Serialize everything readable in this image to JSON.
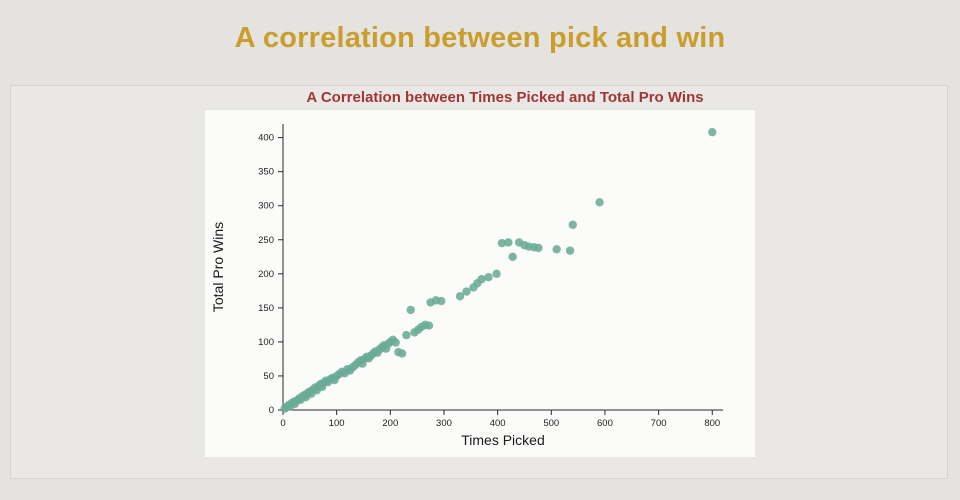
{
  "page": {
    "title": "A correlation between pick and win"
  },
  "chart": {
    "title": "A Correlation between Times Picked and Total Pro Wins",
    "xlabel": "Times Picked",
    "ylabel": "Total Pro Wins",
    "title_color": "#a13636",
    "point_color": "#6aab97",
    "axis_color": "#2a2a2a",
    "plot_bg": "#fbfbfa"
  },
  "colors": {
    "page_bg": "#e5e3e0",
    "panel_bg": "#eae8e5",
    "main_title": "#c99e2d"
  },
  "chart_data": {
    "type": "scatter",
    "title": "A Correlation between Times Picked and Total Pro Wins",
    "xlabel": "Times Picked",
    "ylabel": "Total Pro Wins",
    "xlim": [
      0,
      820
    ],
    "ylim": [
      0,
      420
    ],
    "x_ticks": [
      0,
      100,
      200,
      300,
      400,
      500,
      600,
      700,
      800
    ],
    "y_ticks": [
      0,
      50,
      100,
      150,
      200,
      250,
      300,
      350,
      400
    ],
    "points": [
      [
        3,
        2
      ],
      [
        6,
        4
      ],
      [
        10,
        7
      ],
      [
        13,
        5
      ],
      [
        16,
        10
      ],
      [
        20,
        12
      ],
      [
        22,
        9
      ],
      [
        26,
        14
      ],
      [
        30,
        17
      ],
      [
        33,
        15
      ],
      [
        36,
        20
      ],
      [
        40,
        22
      ],
      [
        43,
        19
      ],
      [
        46,
        25
      ],
      [
        50,
        27
      ],
      [
        53,
        24
      ],
      [
        56,
        30
      ],
      [
        60,
        33
      ],
      [
        63,
        29
      ],
      [
        66,
        35
      ],
      [
        70,
        38
      ],
      [
        73,
        34
      ],
      [
        76,
        40
      ],
      [
        80,
        43
      ],
      [
        84,
        41
      ],
      [
        88,
        45
      ],
      [
        92,
        47
      ],
      [
        96,
        44
      ],
      [
        100,
        50
      ],
      [
        105,
        53
      ],
      [
        110,
        56
      ],
      [
        115,
        54
      ],
      [
        120,
        60
      ],
      [
        125,
        58
      ],
      [
        130,
        63
      ],
      [
        135,
        66
      ],
      [
        140,
        70
      ],
      [
        145,
        73
      ],
      [
        148,
        68
      ],
      [
        152,
        75
      ],
      [
        156,
        78
      ],
      [
        160,
        76
      ],
      [
        164,
        80
      ],
      [
        168,
        83
      ],
      [
        172,
        86
      ],
      [
        176,
        84
      ],
      [
        180,
        89
      ],
      [
        184,
        92
      ],
      [
        188,
        95
      ],
      [
        192,
        90
      ],
      [
        196,
        97
      ],
      [
        200,
        100
      ],
      [
        205,
        103
      ],
      [
        210,
        99
      ],
      [
        215,
        85
      ],
      [
        222,
        83
      ],
      [
        230,
        110
      ],
      [
        238,
        147
      ],
      [
        245,
        114
      ],
      [
        252,
        118
      ],
      [
        258,
        122
      ],
      [
        265,
        125
      ],
      [
        272,
        124
      ],
      [
        275,
        158
      ],
      [
        285,
        161
      ],
      [
        295,
        160
      ],
      [
        330,
        167
      ],
      [
        342,
        174
      ],
      [
        355,
        180
      ],
      [
        362,
        186
      ],
      [
        370,
        192
      ],
      [
        383,
        195
      ],
      [
        398,
        200
      ],
      [
        408,
        245
      ],
      [
        420,
        246
      ],
      [
        428,
        225
      ],
      [
        440,
        246
      ],
      [
        450,
        242
      ],
      [
        458,
        240
      ],
      [
        468,
        239
      ],
      [
        476,
        238
      ],
      [
        510,
        236
      ],
      [
        535,
        234
      ],
      [
        540,
        272
      ],
      [
        590,
        305
      ],
      [
        800,
        408
      ]
    ]
  }
}
